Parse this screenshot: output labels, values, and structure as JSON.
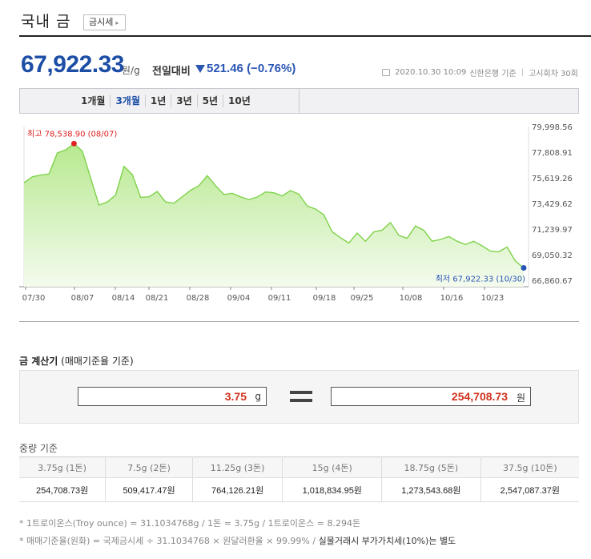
{
  "header": {
    "title": "국내 금",
    "button_label": "금시세"
  },
  "price": {
    "value": "67,922.33",
    "unit": "원/g",
    "compare_label": "전일대비",
    "change": "521.46",
    "change_pct": "(−0.76%)"
  },
  "meta": {
    "datetime": "2020.10.30 10:09",
    "bank": "신한은행 기준",
    "round": "고시회차 30회"
  },
  "periods": [
    {
      "label": "1개월",
      "active": false
    },
    {
      "label": "3개월",
      "active": true
    },
    {
      "label": "1년",
      "active": false
    },
    {
      "label": "3년",
      "active": false
    },
    {
      "label": "5년",
      "active": false
    },
    {
      "label": "10년",
      "active": false
    }
  ],
  "chart_data": {
    "type": "area",
    "x_labels": [
      "07/30",
      "08/07",
      "08/14",
      "08/21",
      "08/28",
      "09/04",
      "09/11",
      "09/18",
      "09/25",
      "10/08",
      "10/16",
      "10/23"
    ],
    "y_ticks": [
      "79,998.56",
      "77,808.91",
      "75,619.26",
      "73,429.62",
      "71,239.97",
      "69,050.32",
      "66,860.67"
    ],
    "ylim": [
      66860.67,
      79998.56
    ],
    "values": [
      75200,
      75700,
      75850,
      75950,
      77750,
      78000,
      78538.9,
      77900,
      75600,
      73290,
      73550,
      74150,
      76600,
      75900,
      73950,
      74000,
      74450,
      73550,
      73450,
      74000,
      74550,
      74950,
      75800,
      74950,
      74190,
      74300,
      73990,
      73750,
      73980,
      74410,
      74340,
      74070,
      74530,
      74220,
      73210,
      72950,
      72460,
      71000,
      70500,
      70050,
      70900,
      70200,
      71000,
      71150,
      71800,
      70700,
      70450,
      71500,
      71130,
      70200,
      70350,
      70600,
      70200,
      69920,
      70190,
      69800,
      69350,
      69300,
      69700,
      68500,
      67922.33
    ],
    "max_label": "최고  78,538.90  (08/07)",
    "min_label": "최저  67,922.33  (10/30)",
    "line_color": "#7fd24a",
    "max_point_color": "#e02020",
    "min_point_color": "#2a55b5",
    "grid": false
  },
  "calculator": {
    "title": "금 계산기",
    "subtitle": "(매매기준율 기준)",
    "input_value": "3.75",
    "input_unit": "g",
    "result_value": "254,708.73",
    "result_unit": "원"
  },
  "weights": {
    "title": "중량 기준",
    "headers": [
      "3.75g (1돈)",
      "7.5g (2돈)",
      "11.25g (3돈)",
      "15g (4돈)",
      "18.75g (5돈)",
      "37.5g (10돈)"
    ],
    "values": [
      "254,708.73원",
      "509,417.47원",
      "764,126.21원",
      "1,018,834.95원",
      "1,273,543.68원",
      "2,547,087.37원"
    ]
  },
  "notes": {
    "line1": "* 1트로이온스(Troy ounce) = 31.1034768g / 1돈 = 3.75g / 1트로이온스 = 8.294돈",
    "line2_a": "* 매매기준율(원화) = 국제금시세 ÷ 31.1034768 × 원달러환율 × 99.99% /",
    "line2_b": "실물거래시 부가가치세(10%)는 별도"
  },
  "colors": {
    "price_blue": "#1c4ea6",
    "result_red": "#d0331f"
  }
}
